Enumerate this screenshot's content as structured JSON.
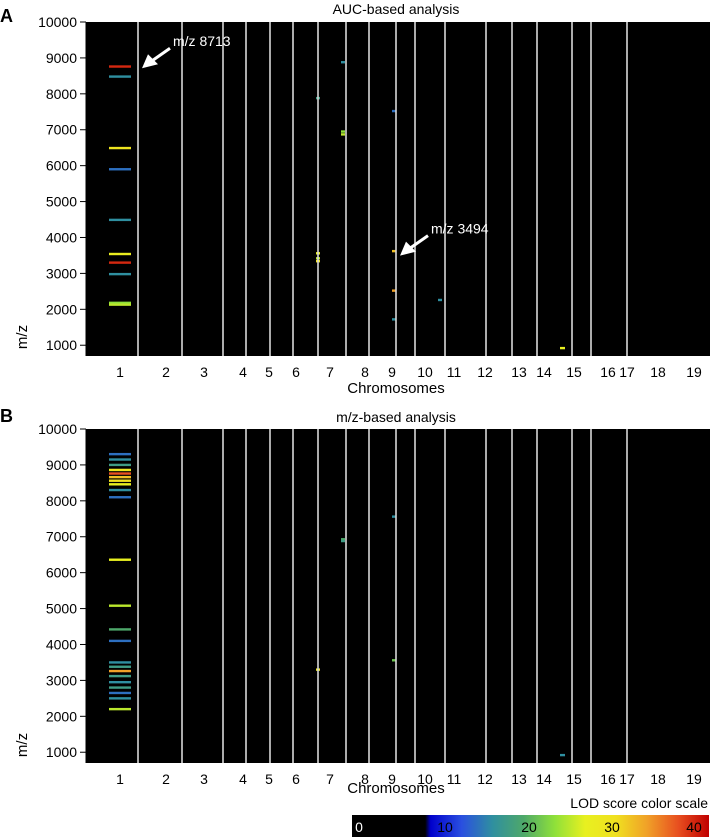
{
  "figure": {
    "legend_title": "LOD score color scale",
    "legend_ticks": [
      "0",
      "10",
      "20",
      "30",
      "40"
    ],
    "legend_colors": [
      "#000000",
      "#0000cc",
      "#2a4fe0",
      "#2f8fa0",
      "#4ea86a",
      "#8ee03a",
      "#e8f020",
      "#f0e020",
      "#f0a028",
      "#e85020",
      "#c00000"
    ]
  },
  "chart_data": [
    {
      "type": "heatmap",
      "panel_label": "A",
      "title": "AUC-based analysis",
      "xlabel": "Chromosomes",
      "ylabel": "m/z",
      "ylim": [
        700,
        10000
      ],
      "yticks": [
        1000,
        2000,
        3000,
        4000,
        5000,
        6000,
        7000,
        8000,
        9000,
        10000
      ],
      "chromosomes": [
        "1",
        "2",
        "3",
        "4",
        "5",
        "6",
        "7",
        "8",
        "9",
        "10",
        "11",
        "12",
        "13",
        "14",
        "15",
        "16",
        "17",
        "18",
        "19"
      ],
      "color_scale": "LOD score",
      "annotations": [
        {
          "text": "m/z 8713",
          "chromosome": "1",
          "mz": 8713
        },
        {
          "text": "m/z 3494",
          "chromosome": "10",
          "mz": 3494
        }
      ],
      "signals": [
        {
          "chromosome": "1",
          "mz": 8760,
          "lod": 38
        },
        {
          "chromosome": "1",
          "mz": 8480,
          "lod": 12
        },
        {
          "chromosome": "1",
          "mz": 6490,
          "lod": 27
        },
        {
          "chromosome": "1",
          "mz": 5900,
          "lod": 10
        },
        {
          "chromosome": "1",
          "mz": 4490,
          "lod": 12
        },
        {
          "chromosome": "1",
          "mz": 3540,
          "lod": 25
        },
        {
          "chromosome": "1",
          "mz": 3300,
          "lod": 38
        },
        {
          "chromosome": "1",
          "mz": 2980,
          "lod": 12
        },
        {
          "chromosome": "1",
          "mz": 2180,
          "lod": 20
        },
        {
          "chromosome": "1",
          "mz": 2130,
          "lod": 22
        },
        {
          "chromosome": "7",
          "mz": 7880,
          "lod": 14
        },
        {
          "chromosome": "7",
          "mz": 3560,
          "lod": 24
        },
        {
          "chromosome": "7",
          "mz": 3420,
          "lod": 22
        },
        {
          "chromosome": "7",
          "mz": 3340,
          "lod": 28
        },
        {
          "chromosome": "8",
          "mz": 8880,
          "lod": 12
        },
        {
          "chromosome": "8",
          "mz": 6950,
          "lod": 20
        },
        {
          "chromosome": "8",
          "mz": 6870,
          "lod": 22
        },
        {
          "chromosome": "10",
          "mz": 7520,
          "lod": 10
        },
        {
          "chromosome": "10",
          "mz": 3620,
          "lod": 30
        },
        {
          "chromosome": "10",
          "mz": 2520,
          "lod": 32
        },
        {
          "chromosome": "10",
          "mz": 1720,
          "lod": 12
        },
        {
          "chromosome": "12",
          "mz": 2260,
          "lod": 12
        },
        {
          "chromosome": "16",
          "mz": 920,
          "lod": 24
        }
      ]
    },
    {
      "type": "heatmap",
      "panel_label": "B",
      "title": "m/z-based analysis",
      "xlabel": "Chromosomes",
      "ylabel": "m/z",
      "ylim": [
        700,
        10000
      ],
      "yticks": [
        1000,
        2000,
        3000,
        4000,
        5000,
        6000,
        7000,
        8000,
        9000,
        10000
      ],
      "chromosomes": [
        "1",
        "2",
        "3",
        "4",
        "5",
        "6",
        "7",
        "8",
        "9",
        "10",
        "11",
        "12",
        "13",
        "14",
        "15",
        "16",
        "17",
        "18",
        "19"
      ],
      "color_scale": "LOD score",
      "annotations": [],
      "signals": [
        {
          "chromosome": "1",
          "mz": 9300,
          "lod": 10
        },
        {
          "chromosome": "1",
          "mz": 9150,
          "lod": 12
        },
        {
          "chromosome": "1",
          "mz": 9000,
          "lod": 14
        },
        {
          "chromosome": "1",
          "mz": 8860,
          "lod": 26
        },
        {
          "chromosome": "1",
          "mz": 8760,
          "lod": 36
        },
        {
          "chromosome": "1",
          "mz": 8660,
          "lod": 30
        },
        {
          "chromosome": "1",
          "mz": 8560,
          "lod": 28
        },
        {
          "chromosome": "1",
          "mz": 8460,
          "lod": 24
        },
        {
          "chromosome": "1",
          "mz": 8300,
          "lod": 12
        },
        {
          "chromosome": "1",
          "mz": 8100,
          "lod": 10
        },
        {
          "chromosome": "1",
          "mz": 6360,
          "lod": 24
        },
        {
          "chromosome": "1",
          "mz": 5080,
          "lod": 22
        },
        {
          "chromosome": "1",
          "mz": 4420,
          "lod": 16
        },
        {
          "chromosome": "1",
          "mz": 4100,
          "lod": 10
        },
        {
          "chromosome": "1",
          "mz": 3500,
          "lod": 12
        },
        {
          "chromosome": "1",
          "mz": 3380,
          "lod": 14
        },
        {
          "chromosome": "1",
          "mz": 3260,
          "lod": 32
        },
        {
          "chromosome": "1",
          "mz": 3120,
          "lod": 14
        },
        {
          "chromosome": "1",
          "mz": 2950,
          "lod": 12
        },
        {
          "chromosome": "1",
          "mz": 2800,
          "lod": 14
        },
        {
          "chromosome": "1",
          "mz": 2650,
          "lod": 10
        },
        {
          "chromosome": "1",
          "mz": 2500,
          "lod": 12
        },
        {
          "chromosome": "1",
          "mz": 2200,
          "lod": 22
        },
        {
          "chromosome": "7",
          "mz": 3300,
          "lod": 26
        },
        {
          "chromosome": "8",
          "mz": 6930,
          "lod": 16
        },
        {
          "chromosome": "8",
          "mz": 6880,
          "lod": 14
        },
        {
          "chromosome": "10",
          "mz": 7560,
          "lod": 12
        },
        {
          "chromosome": "10",
          "mz": 3560,
          "lod": 18
        },
        {
          "chromosome": "16",
          "mz": 920,
          "lod": 12
        }
      ]
    }
  ]
}
